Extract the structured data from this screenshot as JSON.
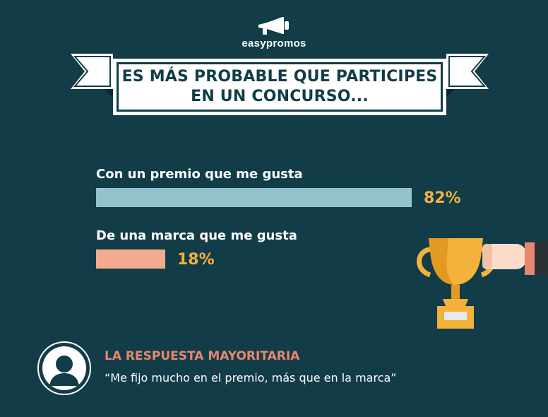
{
  "brand": {
    "name": "easypromos",
    "icon": "megaphone-icon"
  },
  "title": {
    "line1": "ES MÁS PROBABLE QUE PARTICIPES",
    "line2": "EN UN CONCURSO..."
  },
  "colors": {
    "background": "#123c48",
    "bar1": "#94c3cd",
    "bar2": "#f4aa8e",
    "value": "#f2b23b",
    "heading": "#e8876f"
  },
  "chart_data": {
    "type": "bar",
    "orientation": "horizontal",
    "categories": [
      "Con un premio que me gusta",
      "De una marca que me gusta"
    ],
    "values": [
      82,
      18
    ],
    "value_labels": [
      "82%",
      "18%"
    ],
    "ylim": [
      0,
      100
    ]
  },
  "answer": {
    "heading": "LA RESPUESTA MAYORITARIA",
    "quote": "“Me fijo mucho en el premio, más que en la marca”",
    "icon": "person-avatar-icon"
  },
  "illustration": {
    "icon": "trophy-hand-icon"
  }
}
